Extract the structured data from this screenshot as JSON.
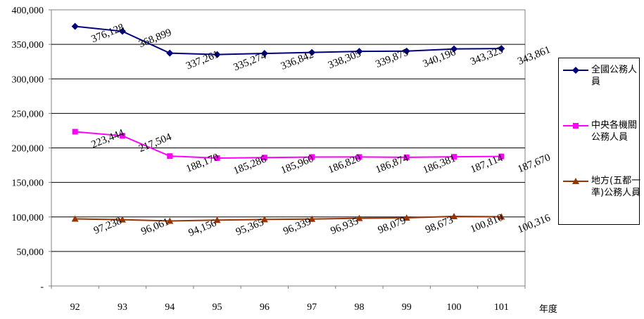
{
  "chart_data": {
    "type": "line",
    "title": "",
    "xlabel": "年度",
    "ylabel": "",
    "categories": [
      "92",
      "93",
      "94",
      "95",
      "96",
      "97",
      "98",
      "99",
      "100",
      "101"
    ],
    "ylim": [
      0,
      400000
    ],
    "yticks": [
      "-",
      "50,000",
      "100,000",
      "150,000",
      "200,000",
      "250,000",
      "300,000",
      "350,000",
      "400,000"
    ],
    "grid": true,
    "legend_position": "right",
    "series": [
      {
        "name": "全國公務人員",
        "color": "#000080",
        "marker": "diamond",
        "values": [
          376128,
          368899,
          337261,
          335274,
          336842,
          338305,
          339875,
          340196,
          343323,
          343861
        ],
        "labels": [
          "376,128",
          "368,899",
          "337,261",
          "335,274",
          "336,842",
          "338,305",
          "339,875",
          "340,196",
          "343,323",
          "343,861"
        ]
      },
      {
        "name": "中央各機關公務人員",
        "color": "#FF00FF",
        "marker": "square",
        "values": [
          223444,
          217504,
          188170,
          185286,
          185960,
          186820,
          186874,
          186381,
          187114,
          187670
        ],
        "labels": [
          "223,444",
          "217,504",
          "188,170",
          "185,286",
          "185,960",
          "186,820",
          "186,874",
          "186,381",
          "187,114",
          "187,670"
        ]
      },
      {
        "name": "地方(五都一準)公務人員",
        "color": "#993300",
        "marker": "triangle",
        "values": [
          97238,
          96061,
          94156,
          95365,
          96339,
          96935,
          98079,
          98673,
          100810,
          100316
        ],
        "labels": [
          "97,238",
          "96,061",
          "94,156",
          "95,365",
          "96,339",
          "96,935",
          "98,079",
          "98,673",
          "100,810",
          "100,316"
        ]
      }
    ]
  }
}
